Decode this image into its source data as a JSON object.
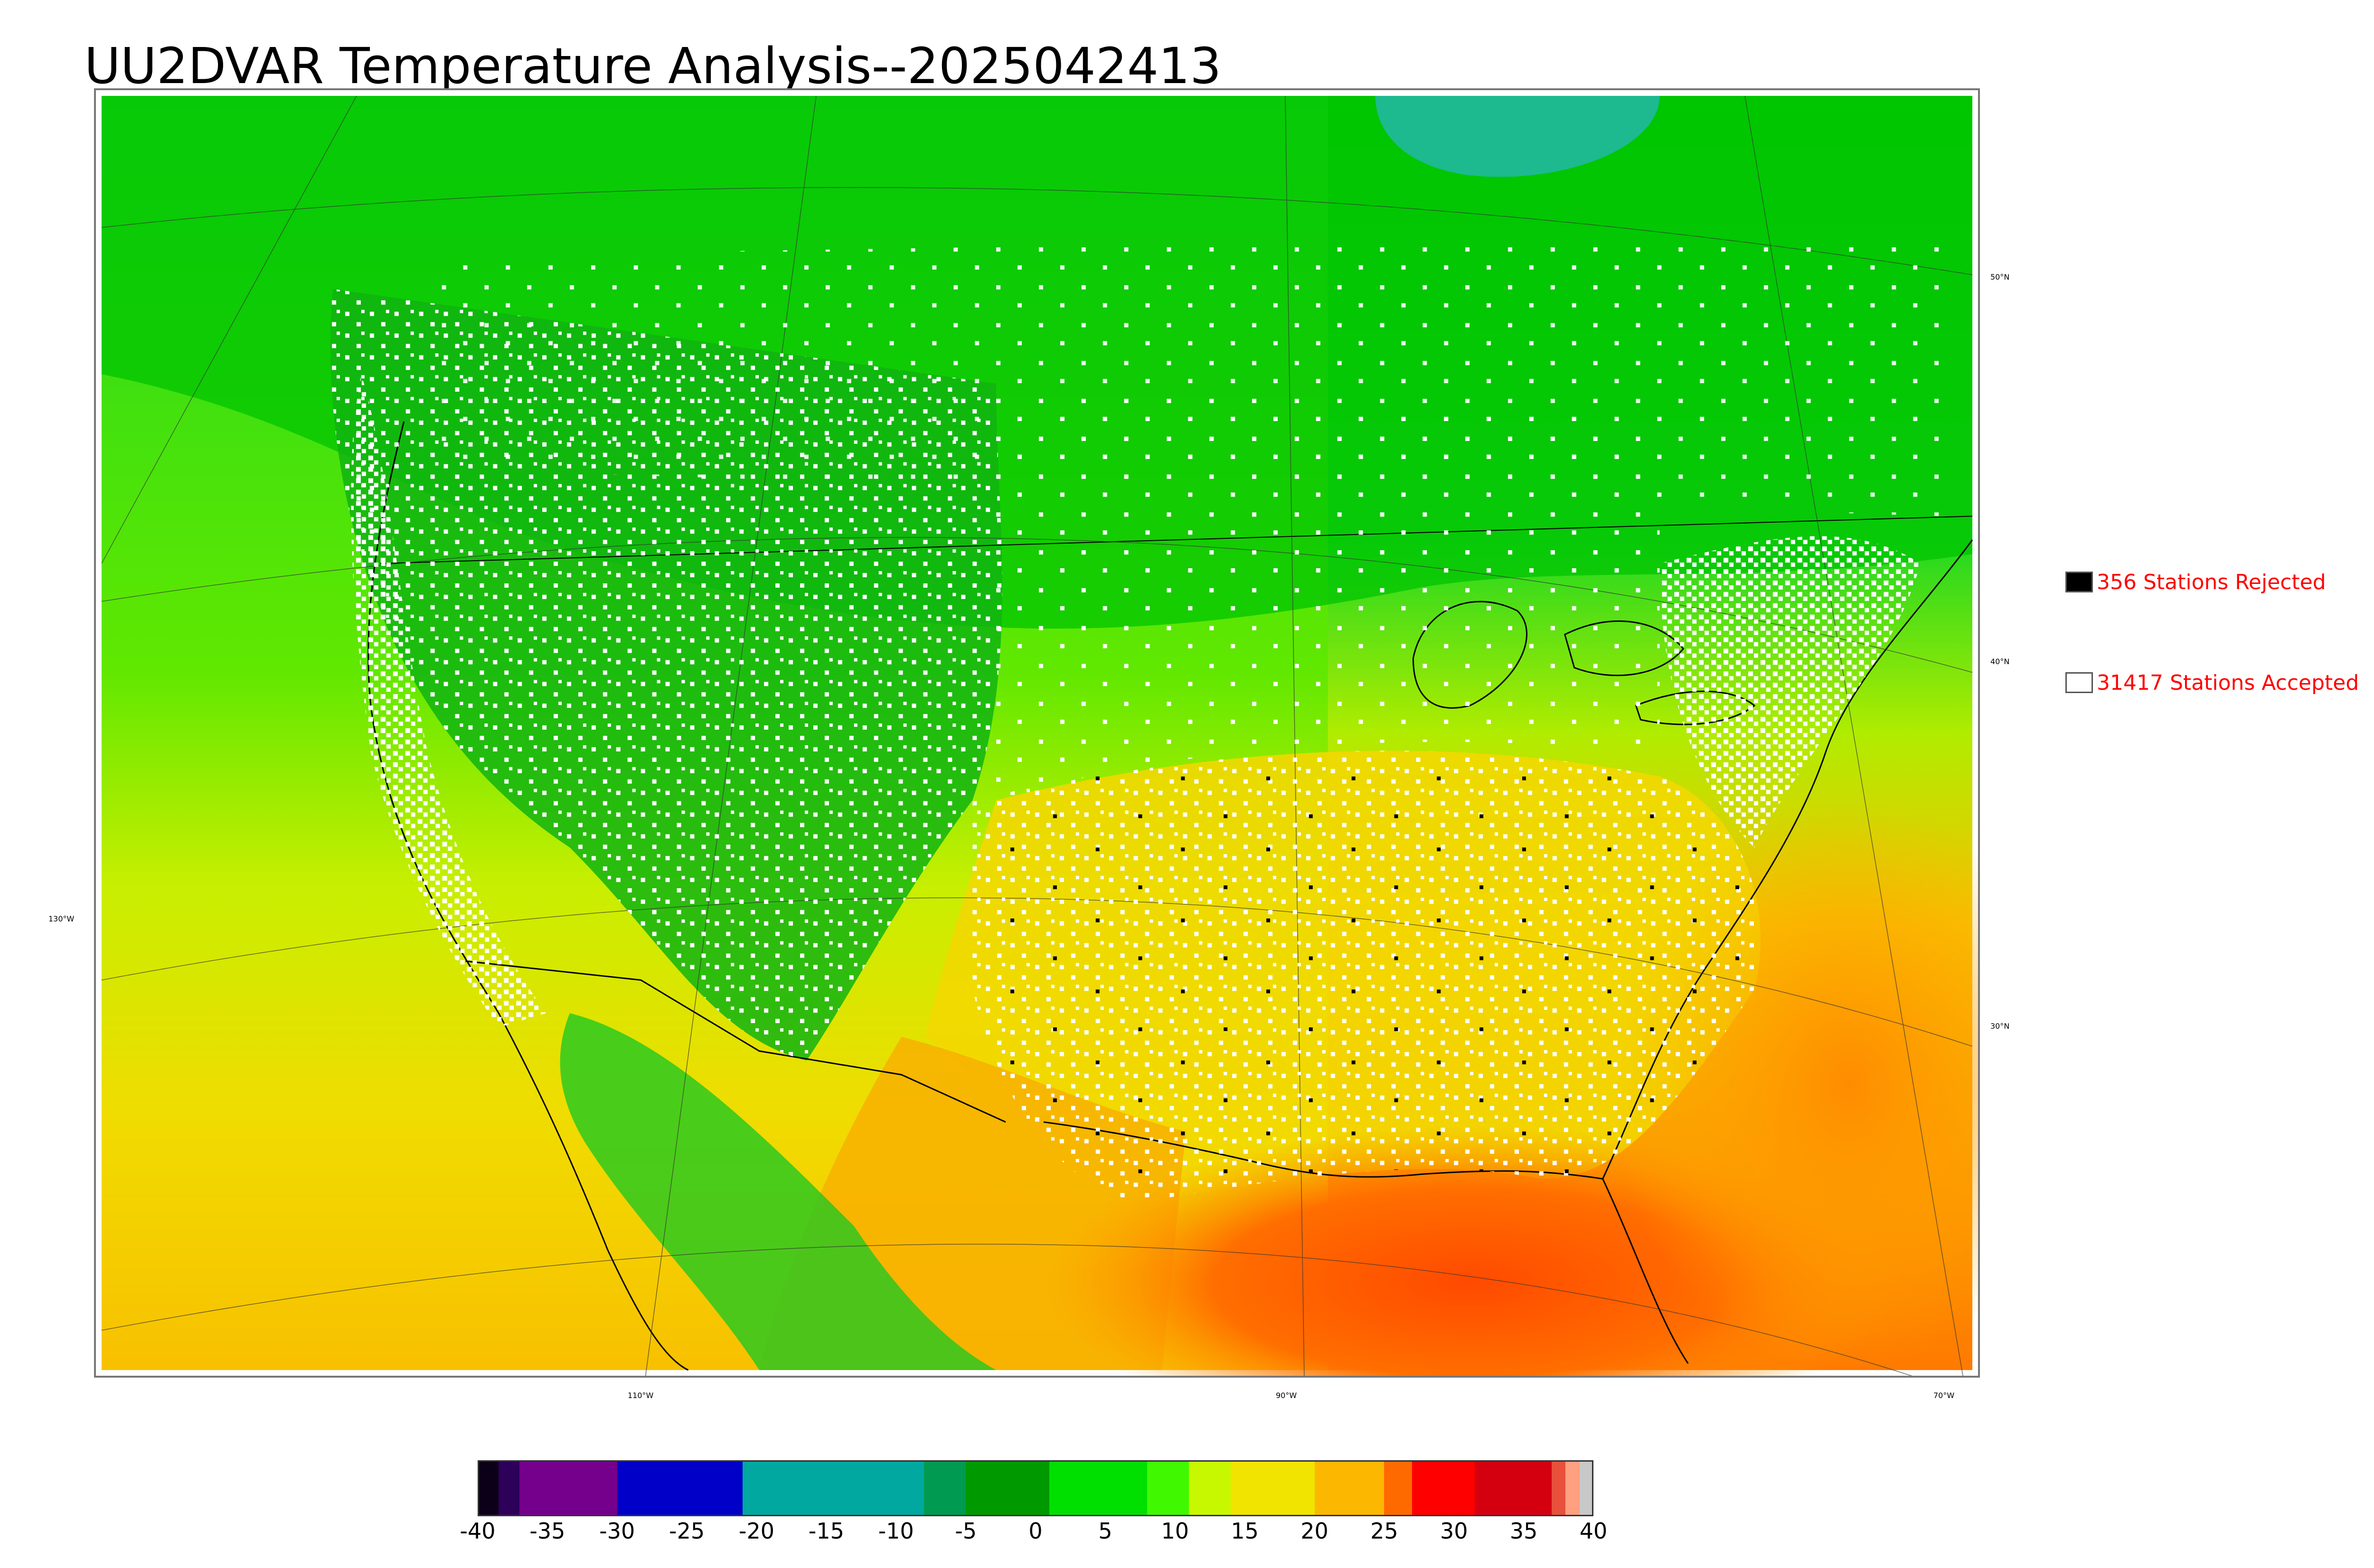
{
  "title": "UU2DVAR Temperature Analysis--2025042413",
  "map": {
    "latitude_labels": [
      "50°N",
      "40°N",
      "30°N"
    ],
    "longitude_labels": [
      "130°W",
      "110°W",
      "90°W",
      "70°W"
    ]
  },
  "legend": {
    "rejected": {
      "label": "356 Stations Rejected",
      "swatch_color": "#000000"
    },
    "accepted": {
      "label": "31417 Stations Accepted",
      "swatch_color": "#ffffff"
    },
    "text_color": "#ff0000"
  },
  "colorbar": {
    "tick_labels": [
      "-40",
      "-35",
      "-30",
      "-25",
      "-20",
      "-15",
      "-10",
      "-5",
      "0",
      "5",
      "10",
      "15",
      "20",
      "25",
      "30",
      "35",
      "40"
    ],
    "range": [
      -40,
      40
    ],
    "segments": [
      {
        "from": -40,
        "to": -38.5,
        "color": "#0c0018"
      },
      {
        "from": -38.5,
        "to": -37,
        "color": "#2d005a"
      },
      {
        "from": -37,
        "to": -30,
        "color": "#74008c"
      },
      {
        "from": -30,
        "to": -21,
        "color": "#0000c8"
      },
      {
        "from": -21,
        "to": -8,
        "color": "#00a8a0"
      },
      {
        "from": -8,
        "to": -5,
        "color": "#009a50"
      },
      {
        "from": -5,
        "to": 1,
        "color": "#009a00"
      },
      {
        "from": 1,
        "to": 8,
        "color": "#00e000"
      },
      {
        "from": 8,
        "to": 11,
        "color": "#40f800"
      },
      {
        "from": 11,
        "to": 14,
        "color": "#c8f800"
      },
      {
        "from": 14,
        "to": 20,
        "color": "#f0e400"
      },
      {
        "from": 20,
        "to": 25,
        "color": "#fcb800"
      },
      {
        "from": 25,
        "to": 27,
        "color": "#ff6a00"
      },
      {
        "from": 27,
        "to": 31.5,
        "color": "#ff0000"
      },
      {
        "from": 31.5,
        "to": 37,
        "color": "#d40010"
      },
      {
        "from": 37,
        "to": 38,
        "color": "#e8503c"
      },
      {
        "from": 38,
        "to": 39,
        "color": "#ffa080"
      },
      {
        "from": 39,
        "to": 40,
        "color": "#c8c8c8"
      }
    ]
  }
}
